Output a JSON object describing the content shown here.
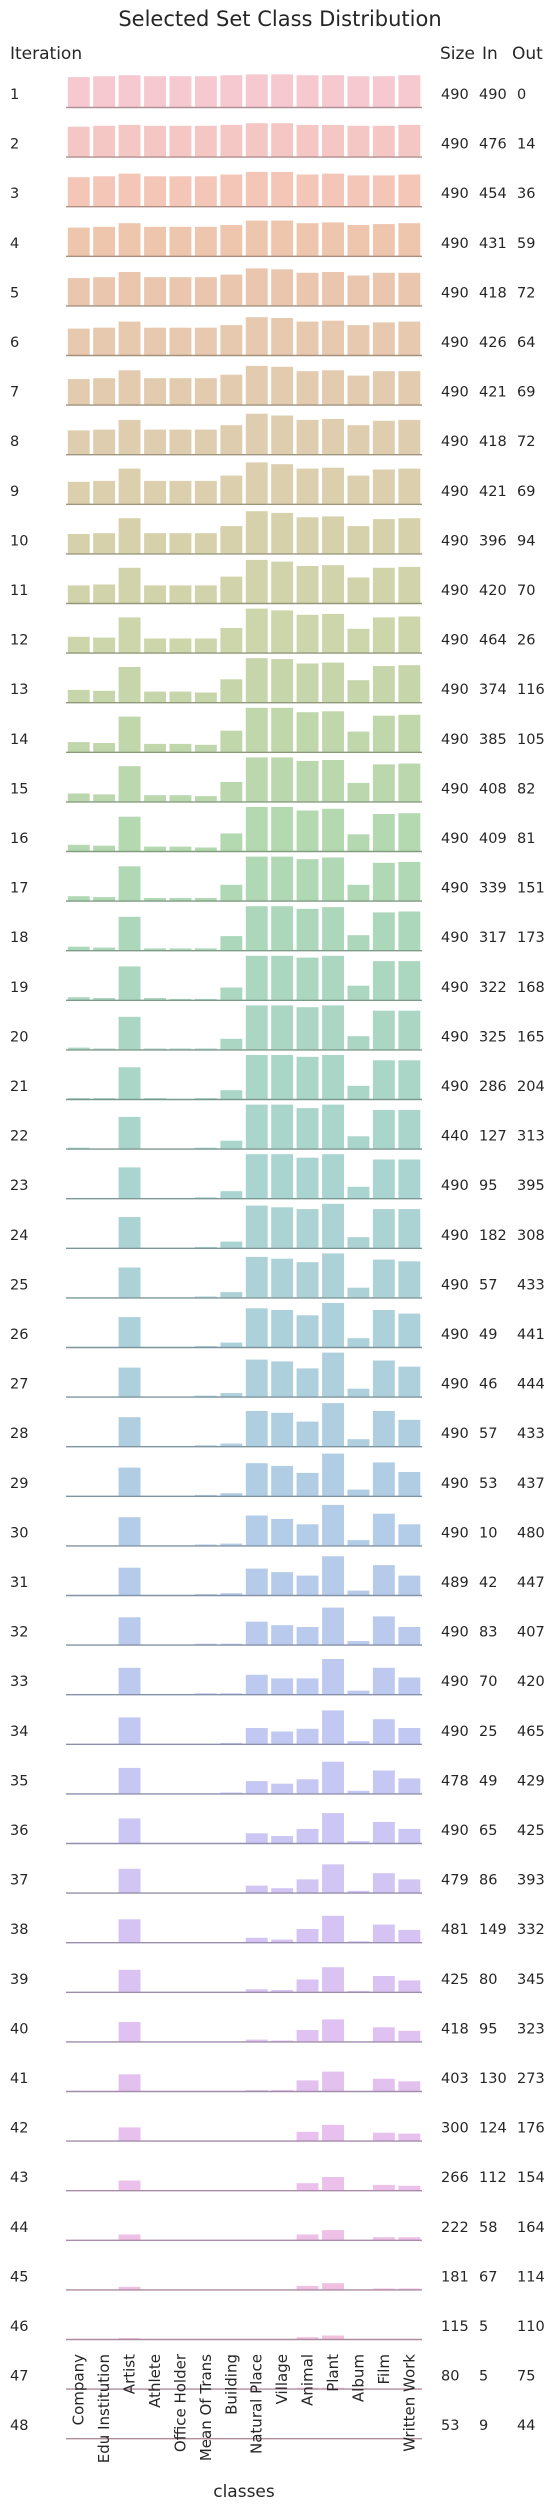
{
  "chart_data": {
    "type": "bar",
    "title": "Selected Set Class Distribution",
    "xlabel": "classes",
    "ylabel": "Iteration",
    "column_headers": {
      "size": "Size",
      "in": "In",
      "out": "Out"
    },
    "categories": [
      "Company",
      "Edu Institution",
      "Artist",
      "Athlete",
      "Office Holder",
      "Mean Of Trans",
      "Building",
      "Natural Place",
      "Village",
      "Animal",
      "Plant",
      "Album",
      "Film",
      "Written Work"
    ],
    "rows": [
      {
        "iteration": "1",
        "size": "490",
        "in": "490",
        "out": "0",
        "values": [
          34,
          35,
          36,
          35,
          35,
          35,
          36,
          37,
          37,
          36,
          36,
          35,
          35,
          36
        ]
      },
      {
        "iteration": "2",
        "size": "490",
        "in": "476",
        "out": "14",
        "values": [
          34,
          35,
          36,
          35,
          35,
          35,
          36,
          38,
          38,
          36,
          36,
          35,
          35,
          36
        ]
      },
      {
        "iteration": "3",
        "size": "490",
        "in": "454",
        "out": "36",
        "values": [
          33,
          34,
          37,
          34,
          34,
          34,
          36,
          39,
          39,
          36,
          37,
          35,
          35,
          36
        ]
      },
      {
        "iteration": "4",
        "size": "490",
        "in": "431",
        "out": "59",
        "values": [
          32,
          33,
          37,
          33,
          33,
          33,
          35,
          40,
          40,
          37,
          38,
          35,
          36,
          37
        ]
      },
      {
        "iteration": "5",
        "size": "490",
        "in": "418",
        "out": "72",
        "values": [
          31,
          32,
          38,
          32,
          32,
          32,
          35,
          42,
          41,
          37,
          38,
          34,
          37,
          37
        ]
      },
      {
        "iteration": "6",
        "size": "490",
        "in": "426",
        "out": "64",
        "values": [
          30,
          31,
          38,
          31,
          31,
          31,
          34,
          43,
          42,
          38,
          39,
          34,
          37,
          38
        ]
      },
      {
        "iteration": "7",
        "size": "490",
        "in": "421",
        "out": "69",
        "values": [
          29,
          30,
          39,
          30,
          30,
          30,
          34,
          44,
          43,
          38,
          39,
          33,
          38,
          38
        ]
      },
      {
        "iteration": "8",
        "size": "490",
        "in": "418",
        "out": "72",
        "values": [
          27,
          28,
          39,
          28,
          28,
          28,
          33,
          46,
          44,
          39,
          40,
          33,
          38,
          39
        ]
      },
      {
        "iteration": "9",
        "size": "490",
        "in": "421",
        "out": "69",
        "values": [
          25,
          26,
          40,
          26,
          26,
          26,
          32,
          47,
          45,
          40,
          41,
          32,
          39,
          40
        ]
      },
      {
        "iteration": "10",
        "size": "490",
        "in": "396",
        "out": "94",
        "values": [
          22,
          23,
          40,
          23,
          23,
          23,
          31,
          48,
          46,
          41,
          42,
          31,
          39,
          40
        ]
      },
      {
        "iteration": "11",
        "size": "490",
        "in": "420",
        "out": "70",
        "values": [
          20,
          21,
          40,
          20,
          20,
          20,
          30,
          49,
          47,
          42,
          43,
          29,
          40,
          41
        ]
      },
      {
        "iteration": "12",
        "size": "490",
        "in": "464",
        "out": "26",
        "values": [
          18,
          17,
          40,
          16,
          16,
          16,
          28,
          50,
          48,
          43,
          44,
          27,
          40,
          41
        ]
      },
      {
        "iteration": "13",
        "size": "490",
        "in": "374",
        "out": "116",
        "values": [
          14,
          13,
          40,
          12,
          12,
          11,
          26,
          50,
          49,
          44,
          45,
          25,
          41,
          42
        ]
      },
      {
        "iteration": "14",
        "size": "490",
        "in": "385",
        "out": "105",
        "values": [
          11,
          10,
          40,
          9,
          9,
          8,
          24,
          50,
          50,
          45,
          46,
          23,
          41,
          42
        ]
      },
      {
        "iteration": "15",
        "size": "490",
        "in": "408",
        "out": "82",
        "values": [
          9,
          8,
          40,
          7,
          7,
          6,
          22,
          50,
          50,
          46,
          47,
          21,
          42,
          43
        ]
      },
      {
        "iteration": "16",
        "size": "490",
        "in": "409",
        "out": "81",
        "values": [
          7,
          6,
          39,
          5,
          5,
          4,
          20,
          50,
          50,
          46,
          48,
          19,
          42,
          43
        ]
      },
      {
        "iteration": "17",
        "size": "490",
        "in": "339",
        "out": "151",
        "values": [
          5,
          4,
          39,
          3,
          3,
          3,
          18,
          50,
          50,
          47,
          49,
          18,
          43,
          44
        ]
      },
      {
        "iteration": "18",
        "size": "490",
        "in": "317",
        "out": "173",
        "values": [
          4,
          3,
          38,
          2,
          2,
          2,
          16,
          50,
          50,
          47,
          49,
          17,
          43,
          44
        ]
      },
      {
        "iteration": "19",
        "size": "490",
        "in": "322",
        "out": "168",
        "values": [
          3,
          2,
          38,
          2,
          1,
          1,
          14,
          50,
          50,
          48,
          50,
          16,
          44,
          44
        ]
      },
      {
        "iteration": "20",
        "size": "490",
        "in": "325",
        "out": "165",
        "values": [
          2,
          1,
          37,
          1,
          1,
          1,
          12,
          50,
          50,
          48,
          50,
          15,
          44,
          44
        ]
      },
      {
        "iteration": "21",
        "size": "490",
        "in": "286",
        "out": "204",
        "values": [
          1,
          1,
          36,
          1,
          0,
          1,
          10,
          50,
          50,
          48,
          50,
          15,
          44,
          44
        ]
      },
      {
        "iteration": "22",
        "size": "440",
        "in": "127",
        "out": "313",
        "values": [
          1,
          0,
          36,
          0,
          0,
          1,
          9,
          50,
          50,
          46,
          50,
          14,
          44,
          44
        ]
      },
      {
        "iteration": "23",
        "size": "490",
        "in": "95",
        "out": "395",
        "values": [
          0,
          0,
          35,
          0,
          0,
          1,
          8,
          50,
          50,
          46,
          50,
          13,
          44,
          44
        ]
      },
      {
        "iteration": "24",
        "size": "490",
        "in": "182",
        "out": "308",
        "values": [
          0,
          0,
          35,
          0,
          0,
          1,
          7,
          48,
          46,
          44,
          50,
          12,
          44,
          44
        ]
      },
      {
        "iteration": "25",
        "size": "490",
        "in": "57",
        "out": "433",
        "values": [
          0,
          0,
          34,
          0,
          0,
          1,
          6,
          46,
          44,
          40,
          50,
          11,
          43,
          41
        ]
      },
      {
        "iteration": "26",
        "size": "490",
        "in": "49",
        "out": "441",
        "values": [
          0,
          0,
          34,
          0,
          0,
          1,
          5,
          44,
          42,
          36,
          50,
          10,
          42,
          38
        ]
      },
      {
        "iteration": "27",
        "size": "490",
        "in": "46",
        "out": "444",
        "values": [
          0,
          0,
          33,
          0,
          0,
          1,
          4,
          42,
          40,
          32,
          50,
          9,
          41,
          34
        ]
      },
      {
        "iteration": "28",
        "size": "490",
        "in": "57",
        "out": "433",
        "values": [
          0,
          0,
          33,
          0,
          0,
          1,
          3,
          40,
          38,
          28,
          49,
          8,
          40,
          30
        ]
      },
      {
        "iteration": "29",
        "size": "490",
        "in": "53",
        "out": "437",
        "values": [
          0,
          0,
          32,
          0,
          0,
          1,
          3,
          37,
          34,
          26,
          48,
          7,
          38,
          27
        ]
      },
      {
        "iteration": "30",
        "size": "490",
        "in": "10",
        "out": "480",
        "values": [
          0,
          0,
          32,
          0,
          0,
          1,
          2,
          34,
          30,
          24,
          46,
          6,
          36,
          24
        ]
      },
      {
        "iteration": "31",
        "size": "489",
        "in": "42",
        "out": "447",
        "values": [
          0,
          0,
          31,
          0,
          0,
          1,
          2,
          30,
          26,
          22,
          44,
          5,
          34,
          22
        ]
      },
      {
        "iteration": "32",
        "size": "490",
        "in": "83",
        "out": "407",
        "values": [
          0,
          0,
          31,
          0,
          0,
          1,
          1,
          26,
          22,
          20,
          42,
          4,
          32,
          20
        ]
      },
      {
        "iteration": "33",
        "size": "490",
        "in": "70",
        "out": "420",
        "values": [
          0,
          0,
          30,
          0,
          0,
          1,
          1,
          22,
          18,
          18,
          40,
          4,
          30,
          19
        ]
      },
      {
        "iteration": "34",
        "size": "490",
        "in": "25",
        "out": "465",
        "values": [
          0,
          0,
          30,
          0,
          0,
          0,
          1,
          18,
          14,
          17,
          38,
          3,
          28,
          18
        ]
      },
      {
        "iteration": "35",
        "size": "478",
        "in": "49",
        "out": "429",
        "values": [
          0,
          0,
          29,
          0,
          0,
          0,
          1,
          14,
          11,
          16,
          36,
          3,
          26,
          17
        ]
      },
      {
        "iteration": "36",
        "size": "490",
        "in": "65",
        "out": "425",
        "values": [
          0,
          0,
          28,
          0,
          0,
          0,
          0,
          11,
          8,
          16,
          34,
          2,
          24,
          16
        ]
      },
      {
        "iteration": "37",
        "size": "479",
        "in": "86",
        "out": "393",
        "values": [
          0,
          0,
          27,
          0,
          0,
          0,
          0,
          8,
          5,
          15,
          32,
          2,
          22,
          15
        ]
      },
      {
        "iteration": "38",
        "size": "481",
        "in": "149",
        "out": "332",
        "values": [
          0,
          0,
          26,
          0,
          0,
          0,
          0,
          5,
          3,
          15,
          30,
          1,
          20,
          14
        ]
      },
      {
        "iteration": "39",
        "size": "425",
        "in": "80",
        "out": "345",
        "values": [
          0,
          0,
          25,
          0,
          0,
          0,
          0,
          3,
          2,
          14,
          28,
          1,
          18,
          13
        ]
      },
      {
        "iteration": "40",
        "size": "418",
        "in": "95",
        "out": "323",
        "values": [
          0,
          0,
          22,
          0,
          0,
          0,
          0,
          2,
          1,
          13,
          25,
          0,
          16,
          12
        ]
      },
      {
        "iteration": "41",
        "size": "403",
        "in": "130",
        "out": "273",
        "values": [
          0,
          0,
          19,
          0,
          0,
          0,
          0,
          1,
          1,
          12,
          22,
          0,
          14,
          11
        ]
      },
      {
        "iteration": "42",
        "size": "300",
        "in": "124",
        "out": "176",
        "values": [
          0,
          0,
          15,
          0,
          0,
          0,
          0,
          0,
          0,
          10,
          18,
          0,
          9,
          8
        ]
      },
      {
        "iteration": "43",
        "size": "266",
        "in": "112",
        "out": "154",
        "values": [
          0,
          0,
          11,
          0,
          0,
          0,
          0,
          0,
          0,
          8,
          15,
          0,
          6,
          5
        ]
      },
      {
        "iteration": "44",
        "size": "222",
        "in": "58",
        "out": "164",
        "values": [
          0,
          0,
          6,
          0,
          0,
          0,
          0,
          0,
          0,
          6,
          11,
          0,
          3,
          3
        ]
      },
      {
        "iteration": "45",
        "size": "181",
        "in": "67",
        "out": "114",
        "values": [
          0,
          0,
          3,
          0,
          0,
          0,
          0,
          0,
          0,
          4,
          7,
          0,
          1,
          1
        ]
      },
      {
        "iteration": "46",
        "size": "115",
        "in": "5",
        "out": "110",
        "values": [
          0,
          0,
          1,
          0,
          0,
          0,
          0,
          0,
          0,
          2,
          4,
          0,
          0,
          0
        ]
      },
      {
        "iteration": "47",
        "size": "80",
        "in": "5",
        "out": "75",
        "values": [
          0,
          0,
          0,
          0,
          0,
          0,
          0,
          0,
          0,
          1,
          1,
          0,
          0,
          0
        ]
      },
      {
        "iteration": "48",
        "size": "53",
        "in": "9",
        "out": "44",
        "values": [
          0,
          0,
          0,
          0,
          0,
          0,
          0,
          0,
          0,
          0,
          0,
          0,
          0,
          0
        ]
      }
    ],
    "value_max": 50,
    "row_colors": [
      "#f6c8d0",
      "#f5c7c4",
      "#f3c6b7",
      "#eec5ad",
      "#e9c6ad",
      "#e6c9ae",
      "#e2cbaf",
      "#dfcdaf",
      "#dbcfad",
      "#d6d1ab",
      "#d1d3aa",
      "#cdd5ab",
      "#c6d5aa",
      "#c0d6ab",
      "#bad7ad",
      "#b4d8b0",
      "#b0d8b5",
      "#add7bb",
      "#abd7c0",
      "#abd6c4",
      "#aad6c8",
      "#aad5cb",
      "#aad4cf",
      "#abd3d3",
      "#acd2d7",
      "#add1da",
      "#aed0dd",
      "#afcfe0",
      "#b1cde4",
      "#b3cce7",
      "#b6cbea",
      "#b9caed",
      "#bdc9ef",
      "#c1c8f1",
      "#c6c7f2",
      "#cbc6f3",
      "#d0c5f3",
      "#d5c4f3",
      "#dac3f2",
      "#dfc2f1",
      "#e3c1ef",
      "#e7c0ed",
      "#ebc0ea",
      "#eec0e6",
      "#f0c0e2",
      "#f2c1de",
      "#f4c3da",
      "#f5c4d6"
    ],
    "grid": false
  }
}
